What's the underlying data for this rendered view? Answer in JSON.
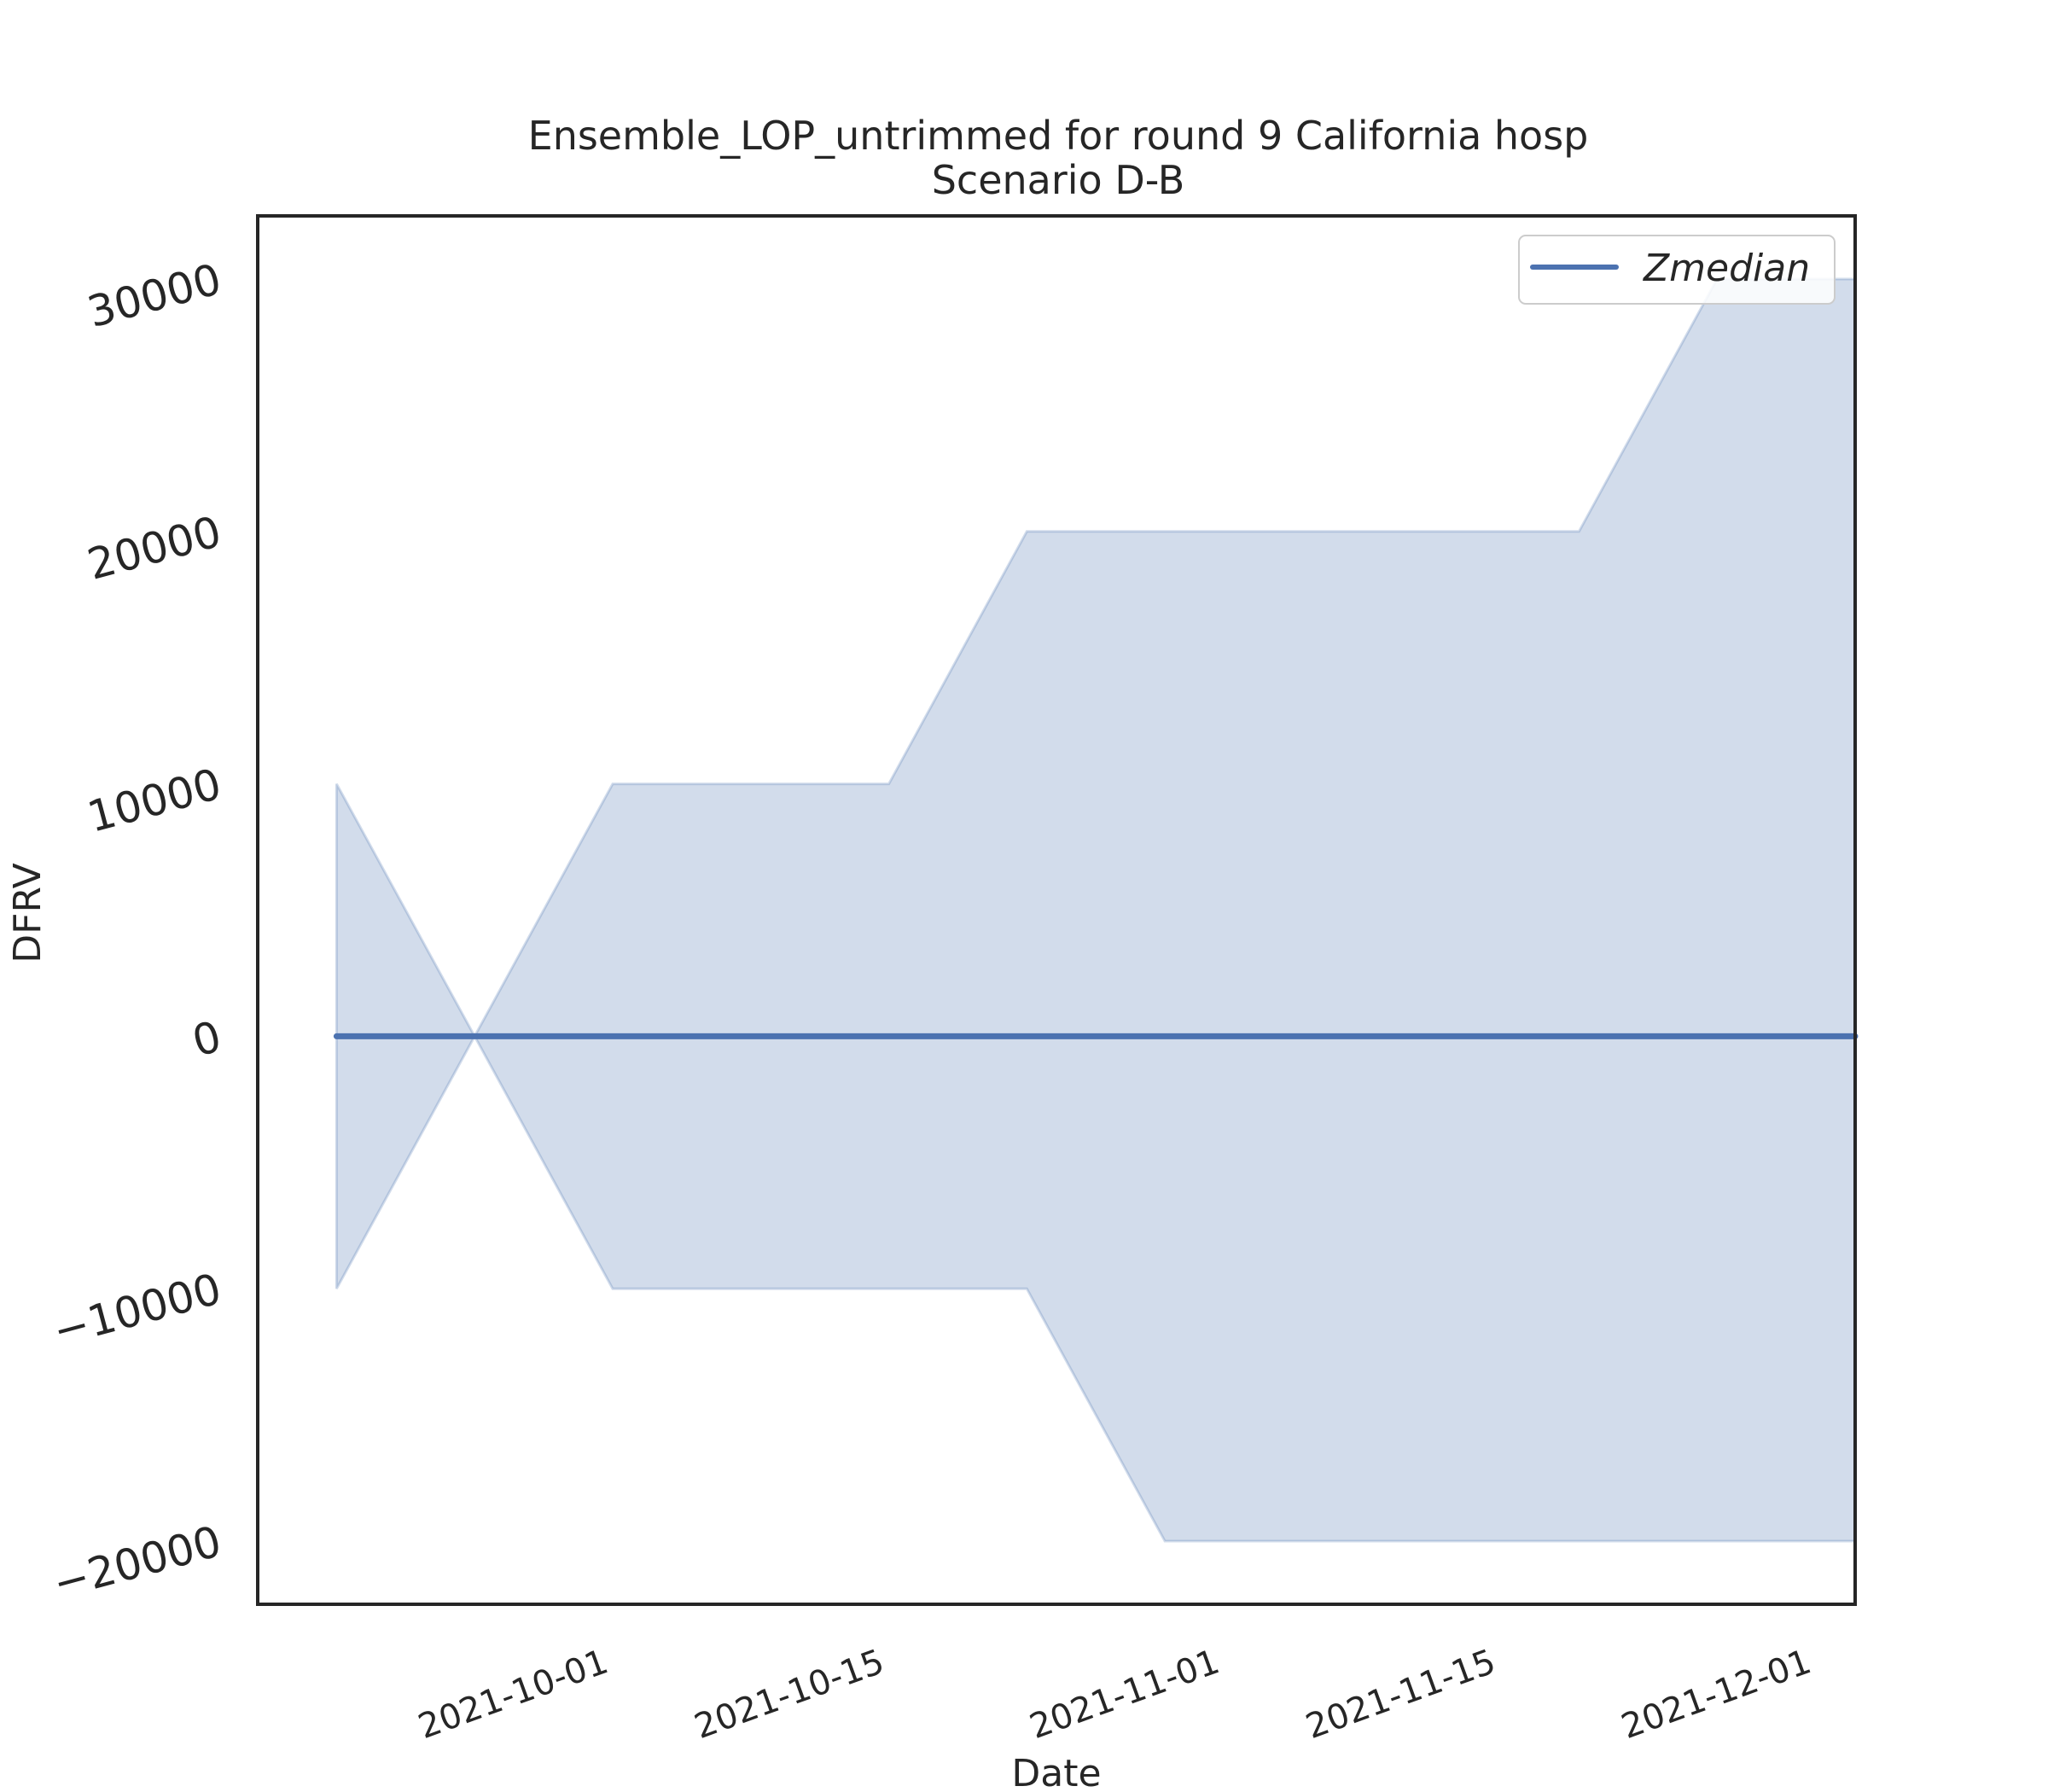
{
  "chart_data": {
    "type": "area",
    "title": "Ensemble_LOP_untrimmed for round 9 California hosp",
    "subtitle": "Scenario D-B",
    "xlabel": "Date",
    "ylabel": "DFRV",
    "x_ticks": [
      "2021-10-01",
      "2021-10-15",
      "2021-11-01",
      "2021-11-15",
      "2021-12-01"
    ],
    "y_ticks": [
      -20000,
      -10000,
      0,
      10000,
      20000,
      30000
    ],
    "y_tick_labels": [
      "−20000",
      "−10000",
      "0",
      "10000",
      "20000",
      "30000"
    ],
    "ylim": [
      -22500,
      32500
    ],
    "xlim": [
      "2021-09-14",
      "2021-12-04"
    ],
    "grid": false,
    "legend_position": "top-right",
    "x": [
      "2021-09-18",
      "2021-09-25",
      "2021-10-02",
      "2021-10-09",
      "2021-10-16",
      "2021-10-23",
      "2021-10-30",
      "2021-11-06",
      "2021-11-13",
      "2021-11-20",
      "2021-11-27",
      "2021-12-04"
    ],
    "band": {
      "lower": [
        -10000,
        0,
        -10000,
        -10000,
        -10000,
        -10000,
        -20000,
        -20000,
        -20000,
        -20000,
        -20000,
        -20000
      ],
      "upper": [
        10000,
        0,
        10000,
        10000,
        10000,
        20000,
        20000,
        20000,
        20000,
        20000,
        30000,
        30000
      ]
    },
    "series": [
      {
        "name": "Zmedian",
        "values": [
          0,
          0,
          0,
          0,
          0,
          0,
          0,
          0,
          0,
          0,
          0,
          0
        ]
      }
    ],
    "colors": {
      "line": "#4c72b0",
      "band": "#4c72b0",
      "axes": "#262626"
    }
  }
}
